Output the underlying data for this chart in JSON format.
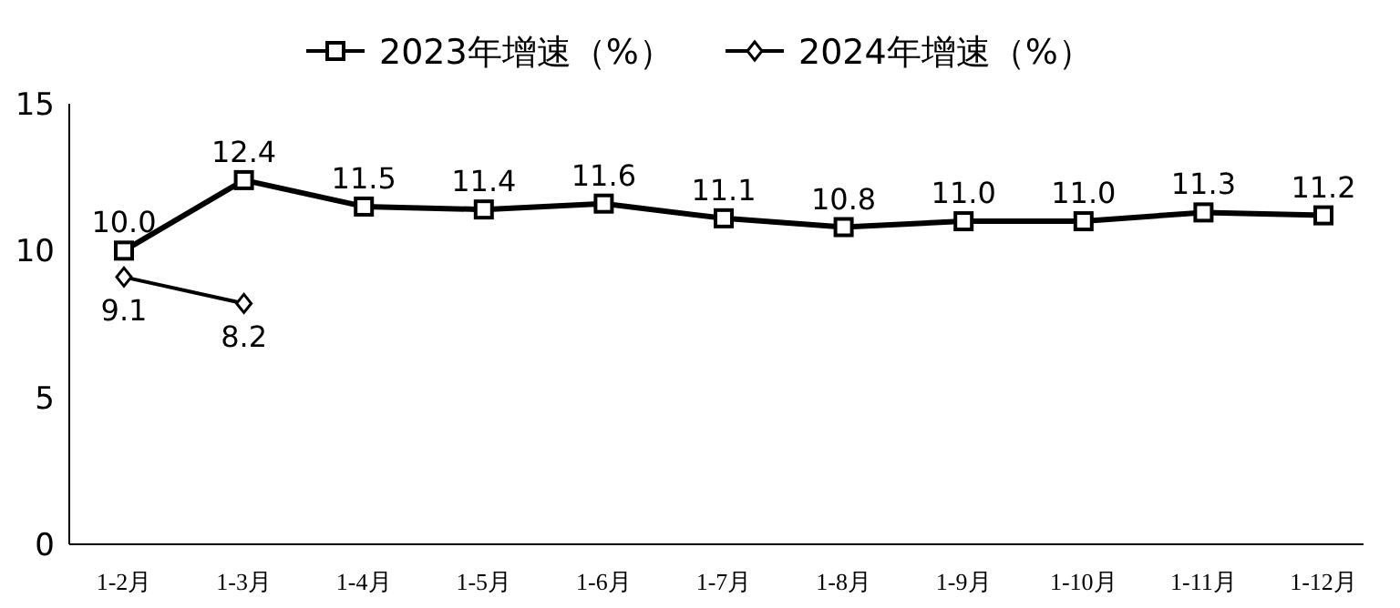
{
  "chart_data": {
    "type": "line",
    "categories": [
      "1-2月",
      "1-3月",
      "1-4月",
      "1-5月",
      "1-6月",
      "1-7月",
      "1-8月",
      "1-9月",
      "1-10月",
      "1-11月",
      "1-12月"
    ],
    "series": [
      {
        "name": "2023年增速（%）",
        "color": "#000000",
        "marker": "square",
        "values": [
          10.0,
          12.4,
          11.5,
          11.4,
          11.6,
          11.1,
          10.8,
          11.0,
          11.0,
          11.3,
          11.2
        ],
        "value_labels": [
          "10.0",
          "12.4",
          "11.5",
          "11.4",
          "11.6",
          "11.1",
          "10.8",
          "11.0",
          "11.0",
          "11.3",
          "11.2"
        ]
      },
      {
        "name": "2024年增速（%）",
        "color": "#000000",
        "marker": "diamond",
        "values": [
          9.1,
          8.2,
          null,
          null,
          null,
          null,
          null,
          null,
          null,
          null,
          null
        ],
        "value_labels": [
          "9.1",
          "8.2",
          null,
          null,
          null,
          null,
          null,
          null,
          null,
          null,
          null
        ]
      }
    ],
    "ylim": [
      0,
      15
    ],
    "yticks": [
      0,
      5,
      10,
      15
    ],
    "grid": false,
    "legend": "top",
    "line_style": "solid"
  }
}
